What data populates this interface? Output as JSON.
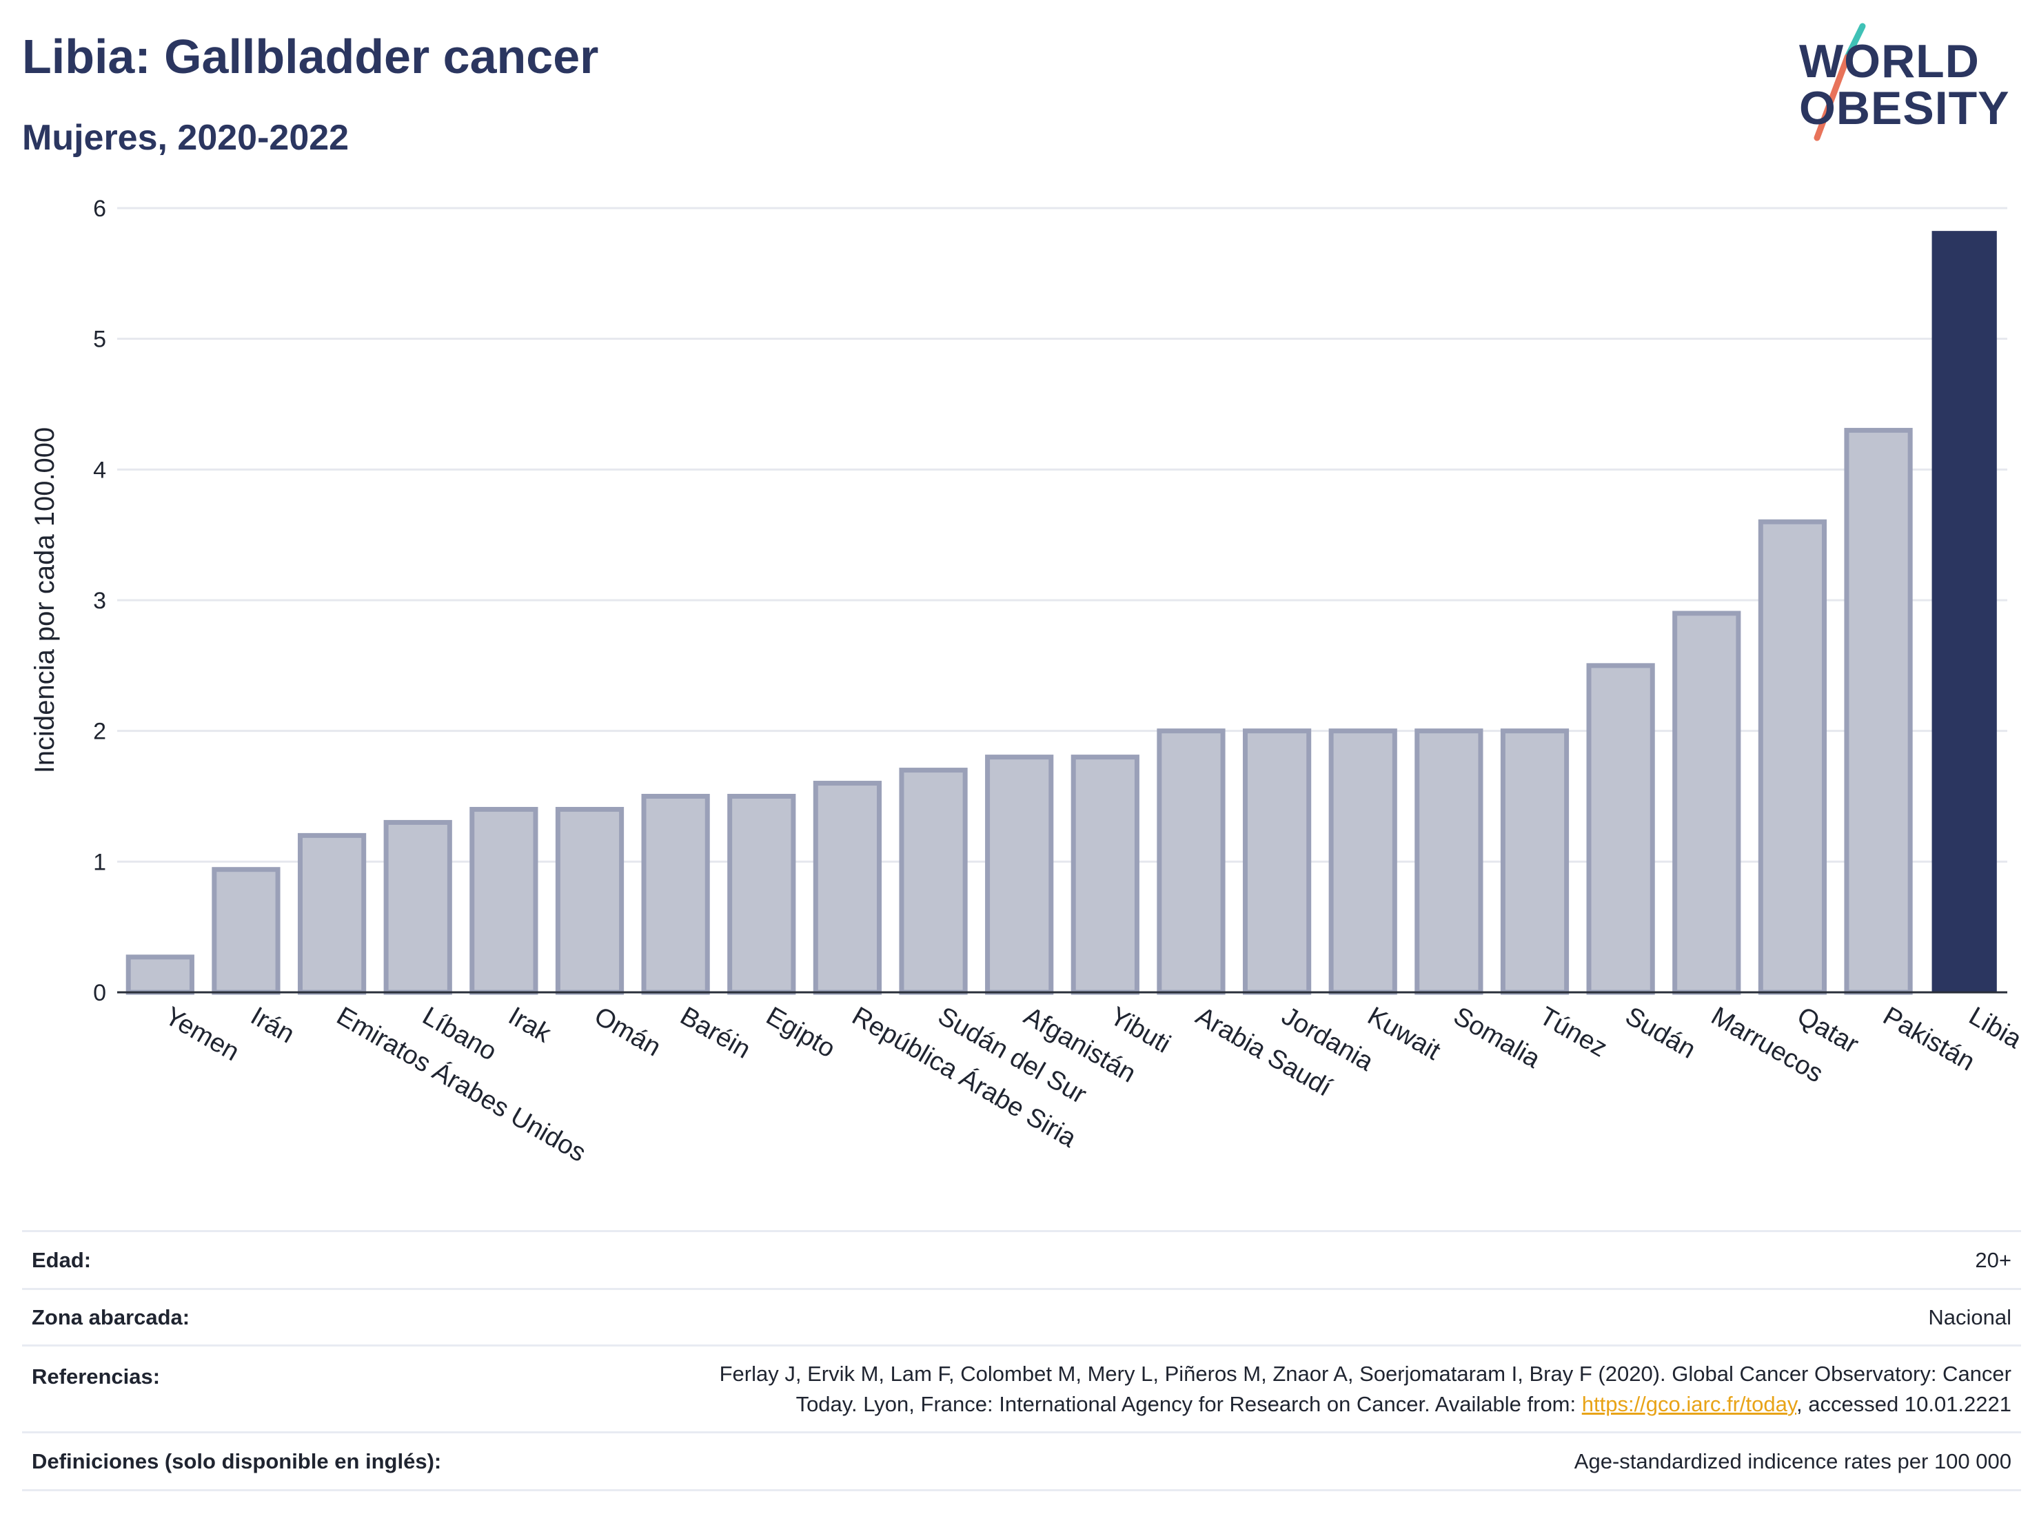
{
  "header": {
    "title": "Libia: Gallbladder cancer",
    "subtitle": "Mujeres, 2020-2022"
  },
  "logo": {
    "line1": "WORLD",
    "line2": "OBESITY",
    "slash_colors": [
      "#3fc1b6",
      "#e8735a"
    ]
  },
  "colors": {
    "bar_default": "#bfc3d0",
    "bar_border": "#9aa0b8",
    "bar_highlight": "#2b3660",
    "grid": "#e6e8ee",
    "text_dark": "#2b3660"
  },
  "chart_data": {
    "type": "bar",
    "title": "Libia: Gallbladder cancer",
    "subtitle": "Mujeres, 2020-2022",
    "xlabel": "",
    "ylabel": "Incidencia por cada 100.000",
    "ylim": [
      0,
      6
    ],
    "yticks": [
      0,
      1,
      2,
      3,
      4,
      5,
      6
    ],
    "grid": true,
    "highlight": "Libia",
    "categories": [
      "Yemen",
      "Irán",
      "Emiratos Árabes Unidos",
      "Líbano",
      "Irak",
      "Omán",
      "Baréin",
      "Egipto",
      "República Árabe Siria",
      "Sudán del Sur",
      "Afganistán",
      "Yibuti",
      "Arabia Saudí",
      "Jordania",
      "Kuwait",
      "Somalia",
      "Túnez",
      "Sudán",
      "Marruecos",
      "Qatar",
      "Pakistán",
      "Libia"
    ],
    "values": [
      0.27,
      0.94,
      1.2,
      1.3,
      1.4,
      1.4,
      1.5,
      1.5,
      1.6,
      1.7,
      1.8,
      1.8,
      2.0,
      2.0,
      2.0,
      2.0,
      2.0,
      2.5,
      2.9,
      3.6,
      4.3,
      5.82
    ]
  },
  "meta": {
    "rows": [
      {
        "key": "Edad:",
        "value": "20+"
      },
      {
        "key": "Zona abarcada:",
        "value": "Nacional"
      },
      {
        "key": "Referencias:",
        "value_line1": "Ferlay J, Ervik M, Lam F, Colombet M, Mery L, Piñeros M, Znaor A, Soerjomataram I, Bray F (2020). Global Cancer Observatory: Cancer",
        "value_line2_pre": "Today. Lyon, France: International Agency for Research on Cancer. Available from: ",
        "link": "https://gco.iarc.fr/today",
        "value_line2_post": ", accessed 10.01.2221"
      },
      {
        "key": "Definiciones (solo disponible en inglés):",
        "value": "Age-standardized indicence rates per 100 000"
      }
    ]
  }
}
